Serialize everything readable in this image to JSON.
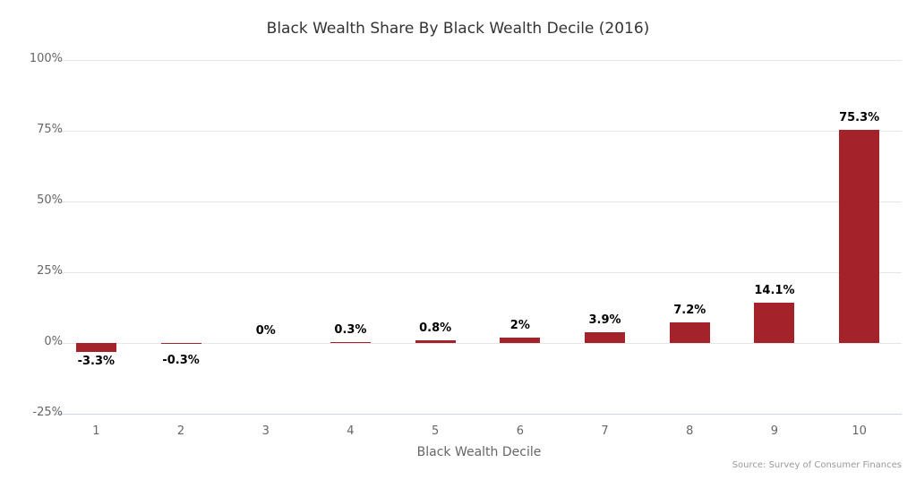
{
  "chart_data": {
    "type": "bar",
    "title": "Black Wealth Share By Black Wealth Decile (2016)",
    "xlabel": "Black Wealth Decile",
    "ylabel": "",
    "categories": [
      "1",
      "2",
      "3",
      "4",
      "5",
      "6",
      "7",
      "8",
      "9",
      "10"
    ],
    "values": [
      -3.3,
      -0.3,
      0,
      0.3,
      0.8,
      2,
      3.9,
      7.2,
      14.1,
      75.3
    ],
    "data_labels": [
      "-3.3%",
      "-0.3%",
      "0%",
      "0.3%",
      "0.8%",
      "2%",
      "3.9%",
      "7.2%",
      "14.1%",
      "75.3%"
    ],
    "ylim": [
      -25,
      100
    ],
    "yticks": [
      "100%",
      "75%",
      "50%",
      "25%",
      "0%",
      "-25%"
    ],
    "ytick_values": [
      100,
      75,
      50,
      25,
      0,
      -25
    ],
    "grid": true,
    "legend": null,
    "bar_color": "#a4232a",
    "source": "Source: Survey of Consumer Finances"
  }
}
